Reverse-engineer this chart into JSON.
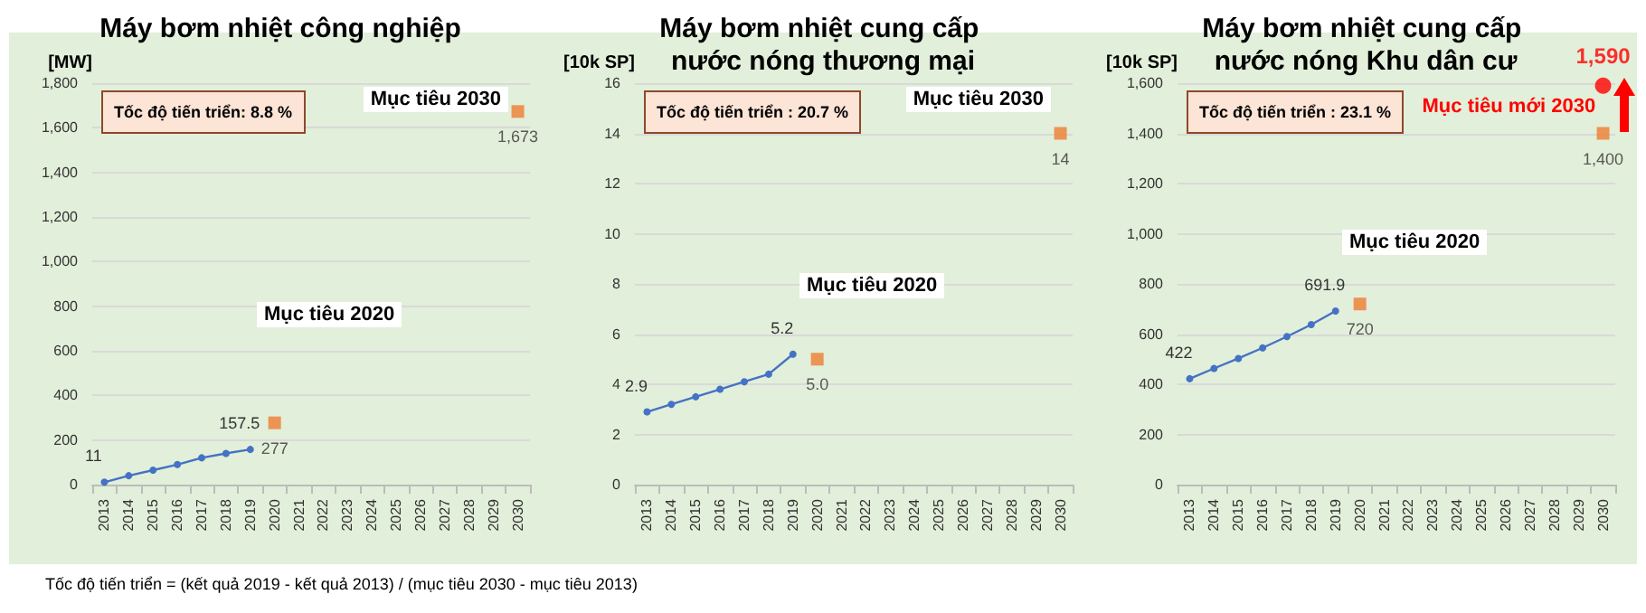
{
  "chart_data": [
    {
      "type": "line",
      "title": "Máy bơm nhiệt công nghiệp",
      "ylabel": "[MW]",
      "categories": [
        "2013",
        "2014",
        "2015",
        "2016",
        "2017",
        "2018",
        "2019",
        "2020",
        "2021",
        "2022",
        "2023",
        "2024",
        "2025",
        "2026",
        "2027",
        "2028",
        "2029",
        "2030"
      ],
      "series": [
        {
          "color": "#4472c4",
          "marker": "circle",
          "values": [
            11,
            40,
            65,
            90,
            120,
            140,
            157.5,
            null,
            null,
            null,
            null,
            null,
            null,
            null,
            null,
            null,
            null,
            null
          ],
          "value_labels": [
            "11",
            null,
            null,
            null,
            null,
            null,
            "157.5",
            null,
            null,
            null,
            null,
            null,
            null,
            null,
            null,
            null,
            null,
            null
          ]
        },
        {
          "type": "scatter",
          "color": "#ed7d31",
          "marker": "square",
          "values": [
            null,
            null,
            null,
            null,
            null,
            null,
            null,
            277,
            null,
            null,
            null,
            null,
            null,
            null,
            null,
            null,
            null,
            1673
          ],
          "value_labels": [
            null,
            null,
            null,
            null,
            null,
            null,
            null,
            "277",
            null,
            null,
            null,
            null,
            null,
            null,
            null,
            null,
            null,
            "1,673"
          ]
        }
      ],
      "ylim": [
        0,
        1800
      ],
      "yticks": [
        0,
        200,
        400,
        600,
        800,
        {
          "value": 1000,
          "label": "1,000"
        },
        {
          "value": 1200,
          "label": "1,200"
        },
        {
          "value": 1400,
          "label": "1,400"
        },
        {
          "value": 1600,
          "label": "1,600"
        },
        {
          "value": 1800,
          "label": "1,800"
        }
      ],
      "grid": "y",
      "legend": false,
      "annotations": [
        "Tốc độ tiến triển: 8.8 %",
        "Mục tiêu 2030",
        "Mục tiêu 2020",
        "Tốc độ tiến triển = (kết quả 2019  - kết quả 2013) / (mục tiêu 2030  - mục tiêu 2013)"
      ]
    },
    {
      "type": "line",
      "title": "Máy bơm nhiệt cung cấp nước nóng thương mại",
      "ylabel": "[10k SP]",
      "categories": [
        "2013",
        "2014",
        "2015",
        "2016",
        "2017",
        "2018",
        "2019",
        "2020",
        "2021",
        "2022",
        "2023",
        "2024",
        "2025",
        "2026",
        "2027",
        "2028",
        "2029",
        "2030"
      ],
      "series": [
        {
          "color": "#4472c4",
          "marker": "circle",
          "values": [
            2.9,
            3.2,
            3.5,
            3.8,
            4.1,
            4.4,
            5.2,
            null,
            null,
            null,
            null,
            null,
            null,
            null,
            null,
            null,
            null,
            null
          ],
          "value_labels": [
            "2.9",
            null,
            null,
            null,
            null,
            null,
            "5.2",
            null,
            null,
            null,
            null,
            null,
            null,
            null,
            null,
            null,
            null,
            null
          ]
        },
        {
          "type": "scatter",
          "color": "#ed7d31",
          "marker": "square",
          "values": [
            null,
            null,
            null,
            null,
            null,
            null,
            null,
            5.0,
            null,
            null,
            null,
            null,
            null,
            null,
            null,
            null,
            null,
            14
          ],
          "value_labels": [
            null,
            null,
            null,
            null,
            null,
            null,
            null,
            "5.0",
            null,
            null,
            null,
            null,
            null,
            null,
            null,
            null,
            null,
            "14"
          ]
        }
      ],
      "ylim": [
        0,
        16
      ],
      "yticks": [
        0,
        2,
        4,
        6,
        8,
        10,
        12,
        14,
        16
      ],
      "grid": "y",
      "legend": false,
      "annotations": [
        "Tốc độ tiến triển : 20.7 %",
        "Mục tiêu 2030",
        "Mục tiêu 2020"
      ]
    },
    {
      "type": "line",
      "title": "Máy bơm nhiệt cung cấp nước nóng Khu dân cư",
      "ylabel": "[10k SP]",
      "categories": [
        "2013",
        "2014",
        "2015",
        "2016",
        "2017",
        "2018",
        "2019",
        "2020",
        "2021",
        "2022",
        "2023",
        "2024",
        "2025",
        "2026",
        "2027",
        "2028",
        "2029",
        "2030"
      ],
      "series": [
        {
          "color": "#4472c4",
          "marker": "circle",
          "values": [
            422,
            463,
            503,
            545,
            590,
            638,
            691.9,
            null,
            null,
            null,
            null,
            null,
            null,
            null,
            null,
            null,
            null,
            null
          ],
          "value_labels": [
            "422",
            null,
            null,
            null,
            null,
            null,
            "691.9",
            null,
            null,
            null,
            null,
            null,
            null,
            null,
            null,
            null,
            null,
            null
          ]
        },
        {
          "type": "scatter",
          "color": "#ed7d31",
          "marker": "square",
          "values": [
            null,
            null,
            null,
            null,
            null,
            null,
            null,
            720,
            null,
            null,
            null,
            null,
            null,
            null,
            null,
            null,
            null,
            1400
          ],
          "value_labels": [
            null,
            null,
            null,
            null,
            null,
            null,
            null,
            "720",
            null,
            null,
            null,
            null,
            null,
            null,
            null,
            null,
            null,
            "1,400"
          ]
        },
        {
          "type": "scatter",
          "name": "Mục tiêu mới 2030",
          "color": "#ff0000",
          "marker": "circle",
          "values": [
            null,
            null,
            null,
            null,
            null,
            null,
            null,
            null,
            null,
            null,
            null,
            null,
            null,
            null,
            null,
            null,
            null,
            1590
          ],
          "value_labels": [
            null,
            null,
            null,
            null,
            null,
            null,
            null,
            null,
            null,
            null,
            null,
            null,
            null,
            null,
            null,
            null,
            null,
            "1,590"
          ]
        }
      ],
      "ylim": [
        0,
        1600
      ],
      "yticks": [
        0,
        200,
        400,
        600,
        800,
        {
          "value": 1000,
          "label": "1,000"
        },
        {
          "value": 1200,
          "label": "1,200"
        },
        {
          "value": 1400,
          "label": "1,400"
        },
        {
          "value": 1600,
          "label": "1,600"
        }
      ],
      "grid": "y",
      "legend": false,
      "annotations": [
        "Tốc độ tiến triển : 23.1 %",
        "Mục tiêu 2020"
      ]
    }
  ]
}
